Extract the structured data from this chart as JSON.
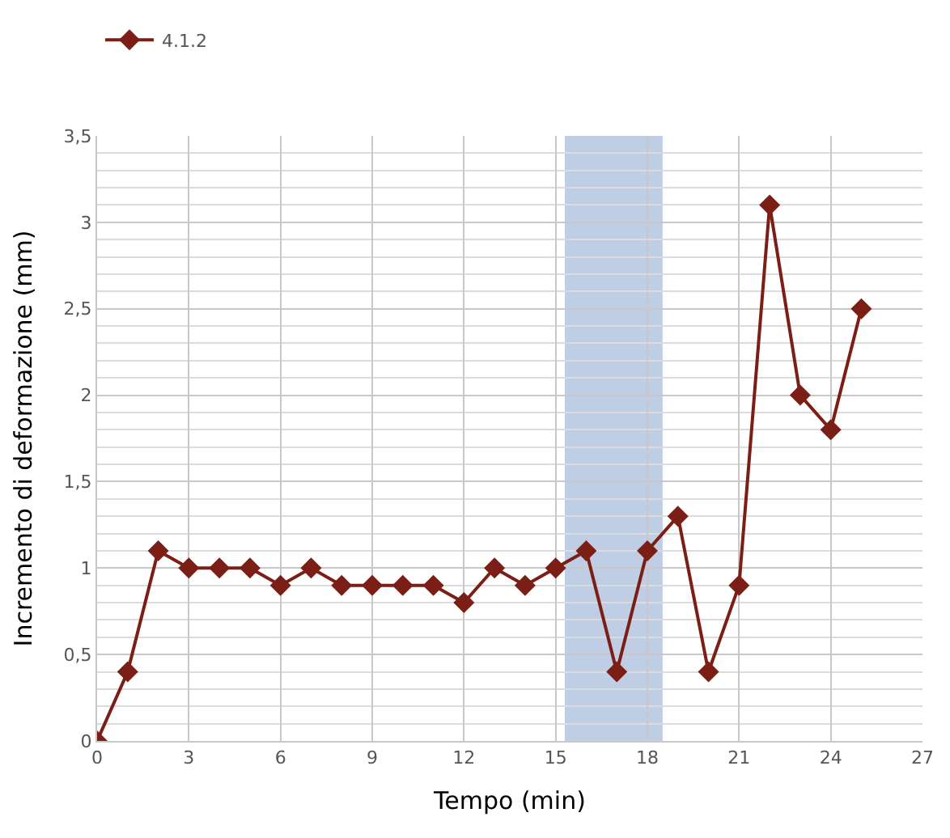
{
  "chart_data": {
    "type": "line",
    "xlabel": "Tempo (min)",
    "ylabel": "Incremento di deformazione (mm)",
    "x": [
      0,
      1,
      2,
      3,
      4,
      5,
      6,
      7,
      8,
      9,
      10,
      11,
      12,
      13,
      14,
      15,
      16,
      17,
      18,
      19,
      20,
      21,
      22,
      23,
      24,
      25
    ],
    "series": [
      {
        "name": "4.1.2",
        "color": "#7b1f16",
        "values": [
          0,
          0.4,
          1.1,
          1.0,
          1.0,
          1.0,
          0.9,
          1.0,
          0.9,
          0.9,
          0.9,
          0.9,
          0.8,
          1.0,
          0.9,
          1.0,
          1.1,
          0.4,
          1.1,
          1.3,
          0.4,
          0.9,
          3.1,
          2.0,
          1.8,
          2.5
        ]
      }
    ],
    "xlim": [
      0,
      27
    ],
    "xticks": [
      0,
      3,
      6,
      9,
      12,
      15,
      18,
      21,
      24,
      27
    ],
    "ylim": [
      0,
      3.5
    ],
    "yticks": [
      0,
      {
        "value": 0.5,
        "label": "0,5"
      },
      1,
      {
        "value": 1.5,
        "label": "1,5"
      },
      2,
      {
        "value": 2.5,
        "label": "2,5"
      },
      3,
      {
        "value": 3.5,
        "label": "3,5"
      }
    ],
    "bands": [
      {
        "axis": "x",
        "from": 15.3,
        "to": 18.5,
        "color": "#b4c6e0"
      }
    ],
    "grid": true,
    "legend": "top left",
    "marker": "diamond",
    "line_style": "solid"
  }
}
